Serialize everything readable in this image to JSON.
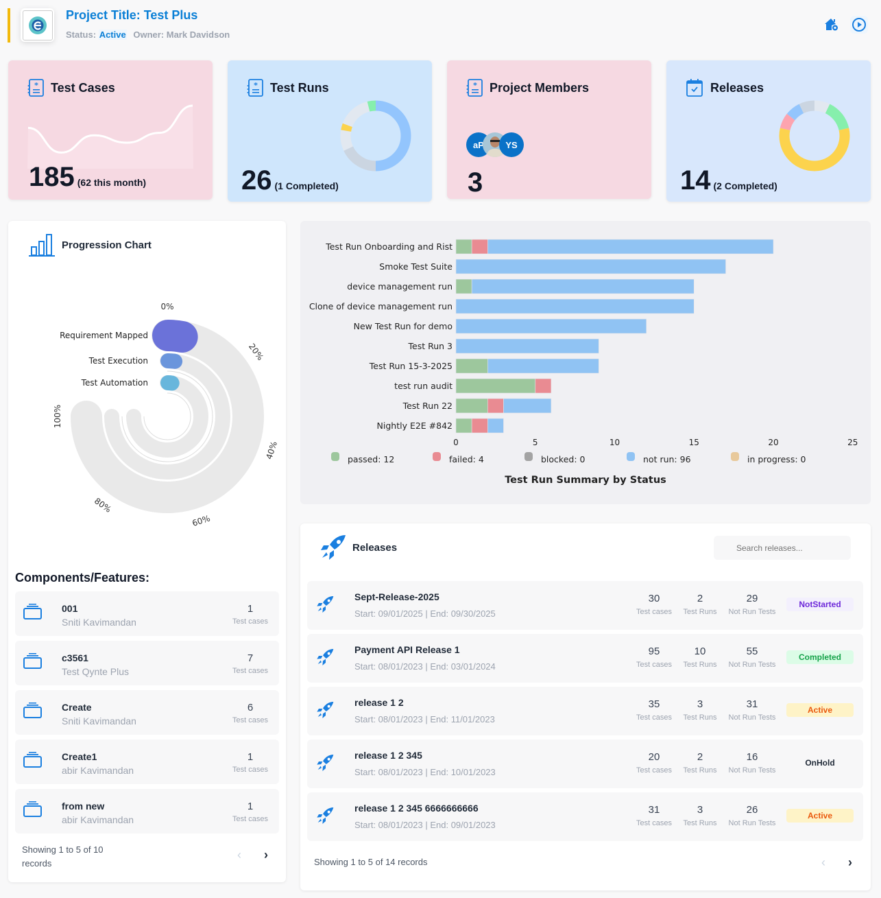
{
  "header": {
    "title": "Project Title: Test Plus",
    "status_label": "Status:",
    "status_value": "Active",
    "owner": "Owner: Mark Davidson",
    "icons": [
      "home-settings-icon",
      "play-circle-icon"
    ],
    "accent_color": "#f2b90c",
    "brand_color": "#0a7fd6"
  },
  "cards": {
    "test_cases": {
      "title": "Test Cases",
      "value": "185",
      "sub": "(62 this month)",
      "bg": "#f6d9e2",
      "sparkline": [
        0.55,
        0.05,
        0.4,
        0.25,
        0.45,
        1.0
      ]
    },
    "test_runs": {
      "title": "Test Runs",
      "value": "26",
      "sub": "(1 Completed)",
      "bg": "#cfe6fc",
      "donut": [
        {
          "color": "#93c5fd",
          "v": 13
        },
        {
          "color": "#cbd5e1",
          "v": 4.7
        },
        {
          "color": "#e2e8f0",
          "v": 2.5
        },
        {
          "color": "#fcd34d",
          "v": 0.8
        },
        {
          "color": "#e2e8f0",
          "v": 4
        },
        {
          "color": "#86efac",
          "v": 1
        }
      ]
    },
    "members": {
      "title": "Project Members",
      "value": "3",
      "bg": "#f6d9e2",
      "avatars": [
        "aP",
        "",
        "YS"
      ]
    },
    "releases": {
      "title": "Releases",
      "value": "14",
      "sub": "(2 Completed)",
      "bg": "#d8e7fc",
      "donut": [
        {
          "color": "#e2e8f0",
          "v": 1
        },
        {
          "color": "#86efac",
          "v": 2
        },
        {
          "color": "#fcd34d",
          "v": 8
        },
        {
          "color": "#fda4af",
          "v": 1
        },
        {
          "color": "#93c5fd",
          "v": 1
        },
        {
          "color": "#cbd5e1",
          "v": 1
        }
      ]
    }
  },
  "progression": {
    "title": "Progression Chart",
    "ticks": [
      "0%",
      "20%",
      "40%",
      "60%",
      "80%",
      "100%"
    ],
    "series": [
      {
        "label": "Requirement Mapped",
        "value": 2,
        "color": "#6b72d9"
      },
      {
        "label": "Test Execution",
        "value": 1,
        "color": "#6a95dc"
      },
      {
        "label": "Test Automation",
        "value": 1,
        "color": "#68b6dc"
      }
    ]
  },
  "chart_data": {
    "type": "bar",
    "orientation": "horizontal",
    "stacked": true,
    "title": "Test Run Summary by Status",
    "categories": [
      "Test Run Onboarding and Rist",
      "Smoke Test Suite",
      "device management run",
      "Clone of device management run",
      "New Test Run for demo",
      "Test Run 3",
      "Test Run 15-3-2025",
      "test run audit",
      "Test Run 22",
      "Nightly E2E #842"
    ],
    "series": [
      {
        "name": "passed",
        "color": "#9dc79d",
        "values": [
          1,
          0,
          1,
          0,
          0,
          0,
          2,
          5,
          2,
          1
        ]
      },
      {
        "name": "failed",
        "color": "#e98b92",
        "values": [
          1,
          0,
          0,
          0,
          0,
          0,
          0,
          1,
          1,
          1
        ]
      },
      {
        "name": "blocked",
        "color": "#a3a3a3",
        "values": [
          0,
          0,
          0,
          0,
          0,
          0,
          0,
          0,
          0,
          0
        ]
      },
      {
        "name": "not run",
        "color": "#90c3f3",
        "values": [
          18,
          17,
          14,
          15,
          12,
          9,
          7,
          0,
          3,
          1
        ]
      },
      {
        "name": "in progress",
        "color": "#e8c99b",
        "values": [
          0,
          0,
          0,
          0,
          0,
          0,
          0,
          0,
          0,
          0
        ]
      }
    ],
    "legend": [
      "passed: 12",
      "failed: 4",
      "blocked: 0",
      "not run: 96",
      "in progress: 0"
    ],
    "xticks": [
      "0",
      "5",
      "10",
      "15",
      "20",
      "25"
    ],
    "xlim": [
      0,
      25
    ],
    "legend_position": "bottom"
  },
  "components": {
    "heading": "Components/Features:",
    "items": [
      {
        "name": "001",
        "owner": "Sniti Kavimandan",
        "count": "1",
        "label": "Test cases"
      },
      {
        "name": "c3561",
        "owner": "Test Qynte Plus",
        "count": "7",
        "label": "Test cases"
      },
      {
        "name": "Create",
        "owner": "Sniti Kavimandan",
        "count": "6",
        "label": "Test cases"
      },
      {
        "name": "Create1",
        "owner": "abir Kavimandan",
        "count": "1",
        "label": "Test cases"
      },
      {
        "name": "from new",
        "owner": "abir Kavimandan",
        "count": "1",
        "label": "Test cases"
      }
    ],
    "pager_line1": "Showing 1 to 5 of 10",
    "pager_line2": "records",
    "prev": "‹",
    "next": "›"
  },
  "releases": {
    "title": "Releases",
    "search_placeholder": "Search releases...",
    "stat_labels": [
      "Test cases",
      "Test Runs",
      "Not Run Tests"
    ],
    "items": [
      {
        "name": "Sept-Release-2025",
        "dates": "Start: 09/01/2025 | End: 09/30/2025",
        "tc": "30",
        "tr": "2",
        "nr": "29",
        "status": "NotStarted",
        "bg": "#f3f0fd",
        "fg": "#6d28d9"
      },
      {
        "name": "Payment API Release 1",
        "dates": "Start: 08/01/2023 | End: 03/01/2024",
        "tc": "95",
        "tr": "10",
        "nr": "55",
        "status": "Completed",
        "bg": "#dcfce7",
        "fg": "#16a34a"
      },
      {
        "name": "release 1 2",
        "dates": "Start: 08/01/2023 | End: 11/01/2023",
        "tc": "35",
        "tr": "3",
        "nr": "31",
        "status": "Active",
        "bg": "#fef3c7",
        "fg": "#ea580c"
      },
      {
        "name": "release 1 2 345",
        "dates": "Start: 08/01/2023 | End: 10/01/2023",
        "tc": "20",
        "tr": "2",
        "nr": "16",
        "status": "OnHold",
        "bg": "transparent",
        "fg": "#1f2937"
      },
      {
        "name": "release 1 2 345 6666666666",
        "dates": "Start: 08/01/2023 | End: 09/01/2023",
        "tc": "31",
        "tr": "3",
        "nr": "26",
        "status": "Active",
        "bg": "#fef3c7",
        "fg": "#ea580c"
      }
    ],
    "pager": "Showing 1 to 5 of 14 records",
    "prev": "‹",
    "next": "›"
  }
}
